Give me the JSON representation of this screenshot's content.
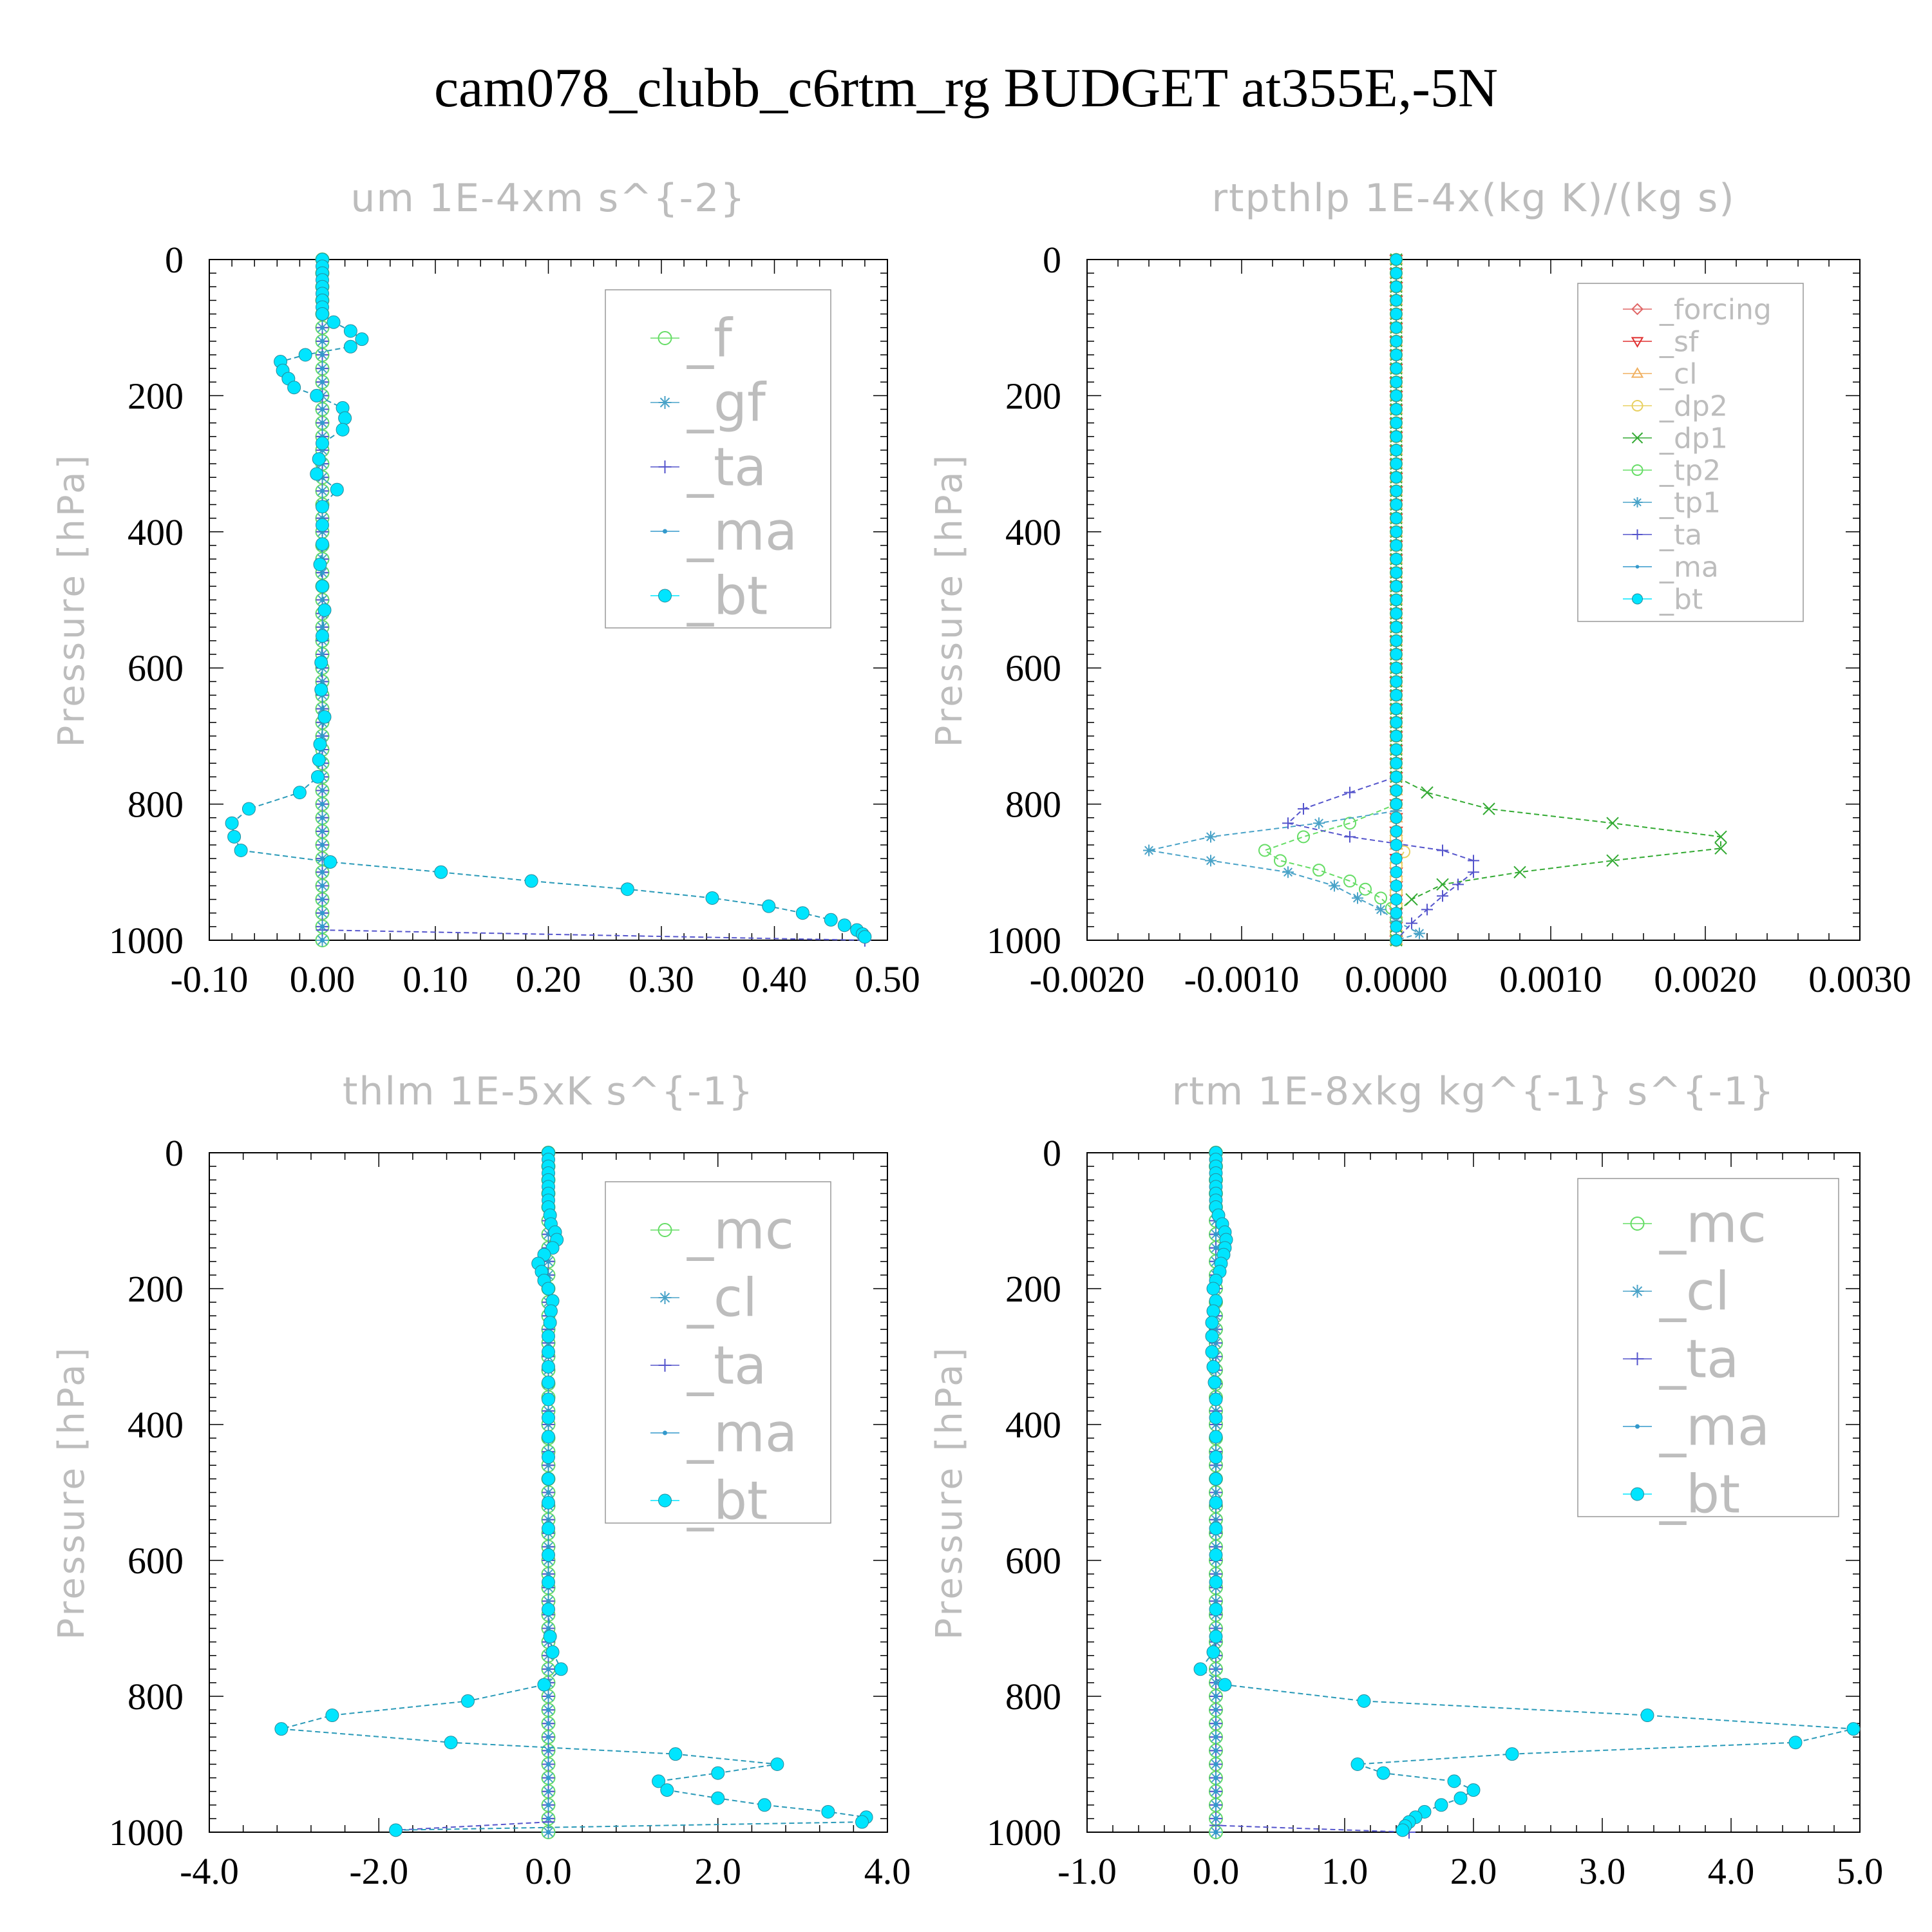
{
  "title": "cam078_clubb_c6rtm_rg  BUDGET at355E,-5N",
  "chart_data": [
    {
      "type": "line",
      "title": "um  1E-4xm s^{-2}",
      "ylabel": "Pressure [hPa]",
      "ylim": [
        1000,
        0
      ],
      "xlim": [
        -0.1,
        0.5
      ],
      "xticks": [
        "-0.10",
        "0.00",
        "0.10",
        "0.20",
        "0.30",
        "0.40",
        "0.50"
      ],
      "yticks": [
        "0",
        "200",
        "400",
        "600",
        "800",
        "1000"
      ],
      "legend_loc": "top-right",
      "series": [
        {
          "name": "_f",
          "color": "#66dd66",
          "marker": "circle-open",
          "p": [
            0,
            1000
          ],
          "x": [
            0.0,
            0.0
          ]
        },
        {
          "name": "_gf",
          "color": "#4aa3c8",
          "marker": "star",
          "p": [
            0,
            1000
          ],
          "x": [
            0.0,
            0.0
          ]
        },
        {
          "name": "_ta",
          "color": "#5555cc",
          "marker": "plus",
          "p": [
            0,
            985,
            1000
          ],
          "x": [
            0.0,
            0.0,
            0.48
          ]
        },
        {
          "name": "_ma",
          "color": "#3399cc",
          "marker": "dot",
          "p": [
            0,
            1000
          ],
          "x": [
            0.0,
            0.0
          ]
        },
        {
          "name": "_bt",
          "color": "#00e5ff",
          "marker": "circle-filled",
          "p": [
            0,
            10,
            20,
            30,
            40,
            50,
            60,
            70,
            80,
            92,
            105,
            117,
            128,
            140,
            150,
            163,
            175,
            188,
            200,
            218,
            233,
            250,
            270,
            293,
            315,
            338,
            363,
            390,
            418,
            448,
            480,
            515,
            553,
            592,
            632,
            672,
            712,
            735,
            760,
            783,
            807,
            828,
            848,
            868,
            885,
            900,
            913,
            925,
            938,
            950,
            960,
            970,
            978,
            985,
            991,
            995
          ],
          "x": [
            0.0,
            0.0,
            0.0,
            0.0,
            0.0,
            0.0,
            0.0,
            0.0,
            0.0,
            0.01,
            0.025,
            0.035,
            0.025,
            -0.015,
            -0.037,
            -0.035,
            -0.03,
            -0.025,
            -0.005,
            0.018,
            0.02,
            0.018,
            0.0,
            -0.003,
            -0.005,
            0.013,
            0.0,
            0.0,
            0.0,
            -0.002,
            0.0,
            0.002,
            0.0,
            -0.001,
            -0.001,
            0.002,
            -0.002,
            -0.003,
            -0.004,
            -0.02,
            -0.065,
            -0.08,
            -0.078,
            -0.072,
            0.007,
            0.105,
            0.185,
            0.27,
            0.345,
            0.395,
            0.425,
            0.45,
            0.462,
            0.473,
            0.478,
            0.48
          ]
        }
      ]
    },
    {
      "type": "line",
      "title": "rtpthlp  1E-4x(kg K)/(kg s)",
      "ylabel": "Pressure [hPa]",
      "ylim": [
        1000,
        0
      ],
      "xlim": [
        -0.002,
        0.003
      ],
      "xticks": [
        "-0.0020",
        "-0.0010",
        "0.0000",
        "0.0010",
        "0.0020",
        "0.0030"
      ],
      "yticks": [
        "0",
        "200",
        "400",
        "600",
        "800",
        "1000"
      ],
      "legend_loc": "top-right",
      "series": [
        {
          "name": "_forcing",
          "color": "#e06666",
          "marker": "diamond-open",
          "p": [
            0,
            1000
          ],
          "x": [
            0.0,
            0.0
          ]
        },
        {
          "name": "_sf",
          "color": "#e03030",
          "marker": "triangle-down",
          "p": [
            0,
            1000
          ],
          "x": [
            0.0,
            0.0
          ]
        },
        {
          "name": "_cl",
          "color": "#f0b060",
          "marker": "triangle-up",
          "p": [
            0,
            1000
          ],
          "x": [
            0.0,
            0.0
          ]
        },
        {
          "name": "_dp2",
          "color": "#e8d060",
          "marker": "circle-open",
          "p": [
            0,
            850,
            870,
            890,
            1000
          ],
          "x": [
            0.0,
            0.0,
            5e-05,
            0.0,
            0.0
          ]
        },
        {
          "name": "_dp1",
          "color": "#33aa33",
          "marker": "x",
          "p": [
            0,
            760,
            783,
            807,
            828,
            848,
            865,
            883,
            900,
            918,
            940,
            960,
            980,
            1000
          ],
          "x": [
            0.0,
            0.0,
            0.0002,
            0.0006,
            0.0014,
            0.0021,
            0.0021,
            0.0014,
            0.0008,
            0.0003,
            0.0001,
            0.0,
            0.0,
            0.0
          ]
        },
        {
          "name": "_tp2",
          "color": "#66dd66",
          "marker": "circle-open",
          "p": [
            0,
            800,
            828,
            848,
            868,
            883,
            897,
            913,
            925,
            938,
            953,
            970,
            1000
          ],
          "x": [
            0.0,
            0.0,
            -0.0003,
            -0.0006,
            -0.00085,
            -0.00075,
            -0.0005,
            -0.0003,
            -0.0002,
            -0.0001,
            -3e-05,
            0.0,
            0.0
          ]
        },
        {
          "name": "_tp1",
          "color": "#4aa3c8",
          "marker": "star",
          "p": [
            0,
            810,
            828,
            848,
            868,
            883,
            900,
            920,
            938,
            955,
            972,
            990,
            1000
          ],
          "x": [
            0.0,
            0.0,
            -0.0005,
            -0.0012,
            -0.0016,
            -0.0012,
            -0.0007,
            -0.0004,
            -0.00025,
            -0.0001,
            0.0,
            0.00015,
            0.0
          ]
        },
        {
          "name": "_ta",
          "color": "#5555cc",
          "marker": "plus",
          "p": [
            0,
            760,
            783,
            807,
            828,
            848,
            868,
            883,
            900,
            918,
            935,
            955,
            975,
            1000
          ],
          "x": [
            0.0,
            0.0,
            -0.0003,
            -0.0006,
            -0.0007,
            -0.0003,
            0.0003,
            0.0005,
            0.0005,
            0.0004,
            0.0003,
            0.0002,
            0.0001,
            0.0
          ]
        },
        {
          "name": "_ma",
          "color": "#3399cc",
          "marker": "dot",
          "p": [
            0,
            1000
          ],
          "x": [
            0.0,
            0.0
          ]
        },
        {
          "name": "_bt",
          "color": "#00e5ff",
          "marker": "circle-filled",
          "p": [
            0,
            1000
          ],
          "x": [
            0.0,
            0.0
          ]
        }
      ]
    },
    {
      "type": "line",
      "title": "thlm  1E-5xK s^{-1}",
      "ylabel": "Pressure [hPa]",
      "ylim": [
        1000,
        0
      ],
      "xlim": [
        -4.0,
        4.0
      ],
      "xticks": [
        "-4.0",
        "-2.0",
        "0.0",
        "2.0",
        "4.0"
      ],
      "yticks": [
        "0",
        "200",
        "400",
        "600",
        "800",
        "1000"
      ],
      "legend_loc": "top-right",
      "series": [
        {
          "name": "_mc",
          "color": "#66dd66",
          "marker": "circle-open",
          "p": [
            0,
            1000
          ],
          "x": [
            0.0,
            0.0
          ]
        },
        {
          "name": "_cl",
          "color": "#4aa3c8",
          "marker": "star",
          "p": [
            0,
            1000
          ],
          "x": [
            0.0,
            0.0
          ]
        },
        {
          "name": "_ta",
          "color": "#5555cc",
          "marker": "plus",
          "p": [
            0,
            985,
            997
          ],
          "x": [
            0.0,
            0.0,
            -1.8
          ]
        },
        {
          "name": "_ma",
          "color": "#3399cc",
          "marker": "dot",
          "p": [
            0,
            1000
          ],
          "x": [
            0.0,
            0.0
          ]
        },
        {
          "name": "_bt",
          "color": "#00e5ff",
          "marker": "circle-filled",
          "p": [
            0,
            10,
            20,
            30,
            40,
            50,
            60,
            70,
            80,
            92,
            105,
            117,
            128,
            140,
            150,
            163,
            175,
            188,
            200,
            218,
            233,
            250,
            270,
            293,
            315,
            338,
            363,
            390,
            418,
            448,
            480,
            515,
            553,
            592,
            632,
            672,
            712,
            735,
            760,
            783,
            807,
            828,
            848,
            868,
            885,
            900,
            913,
            925,
            938,
            950,
            960,
            970,
            978,
            985,
            997
          ],
          "x": [
            0.0,
            0.0,
            0.0,
            0.0,
            0.0,
            0.0,
            0.0,
            0.0,
            0.0,
            0.02,
            0.03,
            0.08,
            0.1,
            0.05,
            -0.05,
            -0.12,
            -0.08,
            -0.05,
            0.0,
            0.05,
            0.03,
            0.02,
            0.0,
            0.0,
            0.0,
            0.0,
            0.0,
            0.0,
            0.0,
            0.0,
            0.0,
            0.0,
            0.0,
            0.0,
            0.0,
            0.0,
            0.02,
            0.05,
            0.15,
            -0.05,
            -0.95,
            -2.55,
            -3.15,
            -1.15,
            1.5,
            2.7,
            2.0,
            1.3,
            1.4,
            2.0,
            2.55,
            3.3,
            3.75,
            3.7,
            -1.8
          ]
        }
      ]
    },
    {
      "type": "line",
      "title": "rtm  1E-8xkg kg^{-1} s^{-1}",
      "ylabel": "Pressure [hPa]",
      "ylim": [
        1000,
        0
      ],
      "xlim": [
        -1.0,
        5.0
      ],
      "xticks": [
        "-1.0",
        "0.0",
        "1.0",
        "2.0",
        "3.0",
        "4.0",
        "5.0"
      ],
      "yticks": [
        "0",
        "200",
        "400",
        "600",
        "800",
        "1000"
      ],
      "legend_loc": "top-right",
      "series": [
        {
          "name": "_mc",
          "color": "#66dd66",
          "marker": "circle-open",
          "p": [
            0,
            1000
          ],
          "x": [
            0.0,
            0.0
          ]
        },
        {
          "name": "_cl",
          "color": "#4aa3c8",
          "marker": "star",
          "p": [
            0,
            1000
          ],
          "x": [
            0.0,
            0.0
          ]
        },
        {
          "name": "_ta",
          "color": "#5555cc",
          "marker": "plus",
          "p": [
            0,
            990,
            1000
          ],
          "x": [
            0.0,
            0.0,
            1.5
          ]
        },
        {
          "name": "_ma",
          "color": "#3399cc",
          "marker": "dot",
          "p": [
            0,
            1000
          ],
          "x": [
            0.0,
            0.0
          ]
        },
        {
          "name": "_bt",
          "color": "#00e5ff",
          "marker": "circle-filled",
          "p": [
            0,
            10,
            20,
            30,
            40,
            50,
            60,
            70,
            80,
            92,
            105,
            117,
            128,
            140,
            150,
            163,
            175,
            188,
            200,
            218,
            233,
            250,
            270,
            293,
            315,
            338,
            363,
            390,
            418,
            448,
            480,
            515,
            553,
            592,
            632,
            672,
            712,
            735,
            760,
            783,
            807,
            828,
            848,
            868,
            885,
            900,
            913,
            925,
            938,
            950,
            960,
            970,
            978,
            985,
            991,
            997
          ],
          "x": [
            0.0,
            0.0,
            0.0,
            0.0,
            0.0,
            0.0,
            0.0,
            0.0,
            0.0,
            0.02,
            0.05,
            0.07,
            0.08,
            0.07,
            0.06,
            0.04,
            0.03,
            0.0,
            -0.02,
            0.0,
            -0.02,
            -0.03,
            -0.03,
            -0.03,
            -0.02,
            -0.01,
            0.0,
            0.0,
            0.0,
            0.0,
            0.0,
            0.0,
            0.0,
            0.0,
            0.0,
            0.0,
            0.0,
            -0.02,
            -0.12,
            0.07,
            1.15,
            3.35,
            4.95,
            4.5,
            2.3,
            1.1,
            1.3,
            1.85,
            2.0,
            1.9,
            1.75,
            1.62,
            1.55,
            1.5,
            1.47,
            1.45
          ]
        }
      ]
    }
  ]
}
